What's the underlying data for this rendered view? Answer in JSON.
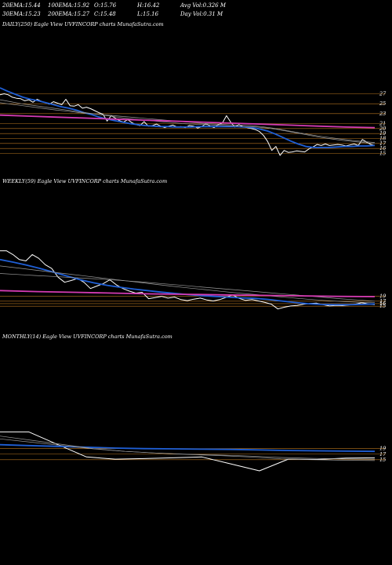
{
  "header": {
    "row1": [
      {
        "label": "20EMA:",
        "value": "15.44"
      },
      {
        "label": "100EMA:",
        "value": "15.92"
      },
      {
        "label": "O:",
        "value": "15.76"
      },
      {
        "label": "H:",
        "value": "16.42"
      },
      {
        "label": "Avg Vol:",
        "value": "0.326  M"
      }
    ],
    "row2": [
      {
        "label": "30EMA:",
        "value": "15.23"
      },
      {
        "label": "200EMA:",
        "value": "15.27"
      },
      {
        "label": "C:",
        "value": "15.48"
      },
      {
        "label": "L:",
        "value": "15.16"
      },
      {
        "label": "Day Vol:",
        "value": "0.31  M"
      }
    ]
  },
  "panels": {
    "daily": {
      "label": "DAILY(250) Eagle   View  UVFINCORP charts MunafaSutra.com"
    },
    "weekly": {
      "label": "WEEKLY(59) Eagle   View  UVFINCORP charts MunafaSutra.com"
    },
    "monthly": {
      "label": "MONTHLY(14) Eagle   View  UVFINCORP charts MunafaSutra.com"
    }
  },
  "colors": {
    "background": "#000000",
    "price": "#ffffff",
    "ema_short": "#1f5fd6",
    "ema_long": "#d43bb3",
    "ema_gray": "#9a9a9a",
    "level": "#b8761f"
  },
  "chart_data": [
    {
      "type": "line",
      "name": "daily",
      "ylim": [
        13.5,
        28.5
      ],
      "tick_labels": [
        "27",
        "25",
        "23",
        "21",
        "20",
        "19",
        "18",
        "17",
        "16",
        "15"
      ],
      "level_lines": [
        27,
        25,
        23,
        21,
        20,
        19,
        18,
        17,
        16,
        15
      ],
      "series": [
        {
          "role": "price",
          "values": [
            26.8,
            27,
            26.8,
            26.3,
            26.1,
            26,
            25.6,
            25.8,
            25.3,
            25.9,
            25.5,
            25.2,
            24.9,
            25.4,
            25.1,
            24.8,
            25.9,
            24.6,
            24.5,
            24.8,
            24.1,
            24.3,
            24,
            23.6,
            23.2,
            22.9,
            21.5,
            22.6,
            22.1,
            21.6,
            21.3,
            21.8,
            21.2,
            20.8,
            20.6,
            21.4,
            20.5,
            20.6,
            20.9,
            20.5,
            20.2,
            20.5,
            20.7,
            20.3,
            20.4,
            20.2,
            20.6,
            20.5,
            20.1,
            20.4,
            21,
            20.5,
            20.2,
            20.8,
            21.1,
            22.6,
            21.3,
            20.3,
            20.8,
            20.4,
            20.2,
            20,
            19.8,
            19.4,
            18.6,
            17.4,
            15.6,
            16.4,
            14.6,
            15.6,
            15.2,
            15.3,
            15.5,
            15.4,
            15.3,
            15.9,
            16.3,
            16.8,
            16.6,
            16.9,
            16.6,
            16.7,
            16.8,
            16.7,
            16.5,
            16.7,
            16.9,
            16.6,
            17.8,
            17.3,
            16.8,
            16.6
          ]
        },
        {
          "role": "ema_short",
          "values": [
            28.2,
            27.5,
            26.9,
            26.3,
            25.9,
            25.6,
            25.2,
            24.8,
            24.4,
            24.1,
            23.7,
            23.2,
            22.8,
            22.3,
            21.9,
            21.6,
            21.3,
            21,
            20.8,
            20.6,
            20.5,
            20.4,
            20.4,
            20.3,
            20.3,
            20.3,
            20.4,
            20.4,
            20.4,
            20.4,
            20.4,
            20.4,
            20.3,
            20.2,
            19.9,
            19.5,
            18.9,
            18.2,
            17.5,
            16.9,
            16.4,
            16.2,
            16.2,
            16.2,
            16.3,
            16.4,
            16.4,
            16.5,
            16.5,
            16.6
          ]
        },
        {
          "role": "ema_gray_a",
          "values": [
            25.8,
            25.4,
            25,
            24.7,
            24.4,
            24.1,
            23.8,
            23.5,
            23.2,
            22.9,
            22.6,
            22.3,
            22,
            21.8,
            21.6,
            21.4,
            21.2,
            21,
            20.9,
            20.8,
            20.7,
            20.6,
            20.5,
            20.4,
            20.3,
            20.1,
            19.8,
            19.4,
            19,
            18.6,
            18.2,
            17.9,
            17.6,
            17.4,
            17.2,
            17
          ]
        },
        {
          "role": "ema_gray_b",
          "values": [
            25.2,
            24.9,
            24.6,
            24.3,
            24,
            23.7,
            23.5,
            23.2,
            23,
            22.8,
            22.6,
            22.4,
            22.2,
            22,
            21.8,
            21.6,
            21.4,
            21.2,
            21,
            20.9,
            20.8,
            20.7,
            20.6,
            20.4,
            20.1,
            19.7,
            19.3,
            18.9,
            18.5,
            18.2,
            17.9,
            17.6,
            17.4,
            17.2
          ]
        },
        {
          "role": "ema_long",
          "values": [
            22.7,
            22.5,
            22.3,
            22.1,
            21.9,
            21.7,
            21.5,
            21.3,
            21.1,
            20.9,
            20.7,
            20.5,
            20.3,
            20.2
          ]
        }
      ]
    },
    {
      "type": "line",
      "name": "weekly",
      "ylim": [
        13.5,
        40
      ],
      "tick_labels": [
        "19",
        "17",
        "16",
        "15"
      ],
      "level_lines": [
        19,
        17,
        16,
        15
      ],
      "series": [
        {
          "role": "price",
          "values": [
            37,
            37,
            35.5,
            33.5,
            33,
            35.5,
            34,
            31.5,
            30,
            26.5,
            24.5,
            25.2,
            26,
            24.5,
            22,
            23,
            24,
            25.5,
            23.5,
            22,
            21,
            20.2,
            20.5,
            18,
            18.4,
            18.9,
            18.2,
            18.6,
            17.6,
            17.2,
            17.8,
            18.2,
            17.5,
            17.1,
            17.6,
            18.5,
            19.5,
            18.1,
            17.3,
            17.6,
            17.1,
            16.5,
            15.8,
            13.9,
            14.6,
            15.1,
            15.3,
            15.8,
            16.1,
            16.2,
            15.6,
            15.1,
            15.3,
            15.2,
            15.5,
            15.8,
            16.4,
            15.9,
            15.6
          ]
        },
        {
          "role": "ema_short",
          "values": [
            33.5,
            32.5,
            31.3,
            30,
            28.5,
            27,
            25.5,
            24.3,
            23.3,
            22.5,
            21.8,
            21.2,
            20.6,
            20.1,
            19.6,
            19.2,
            18.9,
            18.6,
            18.3,
            18.1,
            17.7,
            17.1,
            16.5,
            16,
            15.7,
            15.6,
            15.6,
            15.7,
            15.9
          ]
        },
        {
          "role": "ema_gray_a",
          "values": [
            31,
            30.2,
            29.4,
            28.6,
            27.8,
            27,
            26.2,
            25.4,
            24.6,
            23.8,
            23,
            22.3,
            21.6,
            20.9,
            20.2,
            19.6,
            19,
            18.4,
            17.8,
            17.3,
            16.9,
            16.6,
            16.4
          ]
        },
        {
          "role": "ema_gray_b",
          "values": [
            28,
            27.6,
            27.2,
            26.8,
            26.4,
            26,
            25.6,
            25.1,
            24.6,
            24,
            23.4,
            22.8,
            22.2,
            21.6,
            21,
            20.4,
            19.8,
            19.2,
            18.6,
            18,
            17.5,
            17
          ]
        },
        {
          "role": "ema_long",
          "values": [
            21.2,
            20.8,
            20.5,
            20.2,
            19.9,
            19.7,
            19.5,
            19.3,
            19.1,
            18.9,
            18.8
          ]
        }
      ]
    },
    {
      "type": "line",
      "name": "monthly",
      "ylim": [
        11,
        35
      ],
      "tick_labels": [
        "19",
        "17",
        "15"
      ],
      "level_lines": [
        19,
        17,
        15
      ],
      "series": [
        {
          "role": "price",
          "values": [
            25,
            25,
            20.5,
            16,
            15.2,
            15.4,
            15.7,
            16,
            13.5,
            11,
            15.2,
            15.1,
            15.6,
            15.7
          ]
        },
        {
          "role": "ema_short",
          "values": [
            20.4,
            20.1,
            19.8,
            19.5,
            19.2,
            19,
            18.9,
            18.8,
            18.7,
            18.5,
            18.3,
            18.2,
            18.1,
            18
          ]
        },
        {
          "role": "ema_gray_a",
          "values": [
            23.5,
            22,
            20.5,
            19,
            18,
            17.4,
            16.9,
            16.5,
            16,
            15.3,
            15,
            14.8,
            14.7
          ]
        },
        {
          "role": "ema_gray_b",
          "values": [
            22.5,
            21.3,
            20.1,
            18.9,
            18,
            17.4,
            17,
            16.7,
            16.3,
            15.8,
            15.5,
            15.3,
            15.2
          ]
        }
      ]
    }
  ]
}
